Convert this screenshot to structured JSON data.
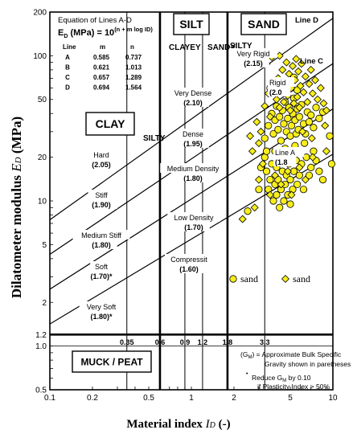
{
  "chart_data": {
    "type": "scatter",
    "xlabel": "Material index",
    "xlabel_symbol": "I",
    "xlabel_sub": "D",
    "xlabel_unit": "(-)",
    "ylabel": "Dilatometer modulus",
    "ylabel_symbol": "E",
    "ylabel_sub": "D",
    "ylabel_unit": "(MPa)",
    "x_scale": "log",
    "y_scale": "log",
    "xlim": [
      0.1,
      10
    ],
    "ylim": [
      0.5,
      200
    ],
    "x_ticks": [
      {
        "v": 0.1,
        "label": "0.1"
      },
      {
        "v": 0.2,
        "label": "0.2"
      },
      {
        "v": 0.5,
        "label": "0.5"
      },
      {
        "v": 1,
        "label": "1"
      },
      {
        "v": 2,
        "label": "2"
      },
      {
        "v": 5,
        "label": "5"
      },
      {
        "v": 10,
        "label": "10"
      }
    ],
    "y_ticks": [
      {
        "v": 0.5,
        "label": "0.5"
      },
      {
        "v": 1,
        "label": "1.0"
      },
      {
        "v": 1.2,
        "label": "1.2"
      },
      {
        "v": 2,
        "label": "2"
      },
      {
        "v": 5,
        "label": "5"
      },
      {
        "v": 10,
        "label": "10"
      },
      {
        "v": 20,
        "label": "20"
      },
      {
        "v": 50,
        "label": "50"
      },
      {
        "v": 100,
        "label": "100"
      },
      {
        "v": 200,
        "label": "200"
      }
    ],
    "id_boundaries": [
      {
        "v": 0.35,
        "label": "0.35",
        "weight": "thin"
      },
      {
        "v": 0.6,
        "label": "0.6",
        "weight": "thick"
      },
      {
        "v": 0.9,
        "label": "0.9",
        "weight": "thin"
      },
      {
        "v": 1.2,
        "label": "1.2",
        "weight": "thin"
      },
      {
        "v": 1.8,
        "label": "1.8",
        "weight": "thick"
      },
      {
        "v": 3.3,
        "label": "3.3",
        "weight": "thin"
      }
    ],
    "muck_line_y": 1.2,
    "equation": {
      "title": "Equation of Lines A-D",
      "formula_lhs": "E",
      "formula_sub": "D",
      "formula_mid": " (MPa) = 10",
      "formula_exp": "(n + m log ID)",
      "headers": [
        "Line",
        "m",
        "n"
      ],
      "rows": [
        {
          "line": "A",
          "m": "0.585",
          "n": "0.737"
        },
        {
          "line": "B",
          "m": "0.621",
          "n": "1.013"
        },
        {
          "line": "C",
          "m": "0.657",
          "n": "1.289"
        },
        {
          "line": "D",
          "m": "0.694",
          "n": "1.564"
        }
      ]
    },
    "line_labels": [
      "Line D",
      "Line C",
      "Line A"
    ],
    "soil_labels": {
      "clay": "CLAY",
      "silt": "SILT",
      "sand": "SAND",
      "clayey": "CLAYEY",
      "sandy": "SANDY",
      "silty_left": "SILTY",
      "silty_right": "SILTY",
      "muck": "MUCK / PEAT"
    },
    "zone_labels": [
      {
        "name": "Hard",
        "gm": "(2.05)"
      },
      {
        "name": "Stiff",
        "gm": "(1.90)"
      },
      {
        "name": "Medium Stiff",
        "gm": "(1.80)"
      },
      {
        "name": "Soft",
        "gm": "(1.70)*"
      },
      {
        "name": "Very Soft",
        "gm": "(1.80)*"
      },
      {
        "name": "Very Dense",
        "gm": "(2.10)"
      },
      {
        "name": "Dense",
        "gm": "(1.95)"
      },
      {
        "name": "Medium Density",
        "gm": "(1.80)"
      },
      {
        "name": "Low Density",
        "gm": "(1.70)"
      },
      {
        "name": "Compressit",
        "gm": "(1.60)"
      },
      {
        "name": "Very Rigid",
        "gm": "(2.15)"
      },
      {
        "name": "Rigid",
        "gm": "(2.0"
      },
      {
        "name": "Line A",
        "gm": "(1.8"
      }
    ],
    "notes": {
      "gm_line1": "= Approximate Bulk Specific",
      "gm_symbol": "(G",
      "gm_sub": "M",
      "gm_close": ")",
      "gm_line2": "Gravity shown in paretheses",
      "reduce_line1": "Reduce G",
      "reduce_sub": "M",
      "reduce_tail": " by 0.10",
      "reduce_line2": "if Plasticity Index > 50%"
    },
    "legend": [
      {
        "name": "sand",
        "marker": "circle"
      },
      {
        "name": "sand",
        "marker": "diamond"
      }
    ],
    "marker_color": "#f7ee1a",
    "marker_edge": "#000000",
    "series": [
      {
        "name": "sand",
        "marker": "circle",
        "points": [
          [
            2.5,
            8.5
          ],
          [
            3.0,
            12
          ],
          [
            3.1,
            17
          ],
          [
            3.3,
            20
          ],
          [
            3.4,
            16
          ],
          [
            3.5,
            12
          ],
          [
            3.6,
            14
          ],
          [
            3.7,
            18
          ],
          [
            3.8,
            10
          ],
          [
            3.9,
            13
          ],
          [
            4.0,
            17
          ],
          [
            4.0,
            11
          ],
          [
            4.1,
            14
          ],
          [
            4.2,
            9
          ],
          [
            4.3,
            12
          ],
          [
            4.4,
            16
          ],
          [
            4.5,
            19
          ],
          [
            4.5,
            10
          ],
          [
            4.6,
            13
          ],
          [
            4.7,
            15
          ],
          [
            4.8,
            11
          ],
          [
            4.9,
            18
          ],
          [
            5.0,
            14
          ],
          [
            5.0,
            9.5
          ],
          [
            5.2,
            12
          ],
          [
            5.3,
            16
          ],
          [
            5.5,
            19
          ],
          [
            5.6,
            13
          ],
          [
            5.8,
            15
          ],
          [
            6.0,
            18
          ],
          [
            6.2,
            12
          ],
          [
            6.5,
            20
          ],
          [
            6.8,
            15
          ],
          [
            7.0,
            17
          ],
          [
            7.3,
            22
          ],
          [
            7.6,
            19
          ],
          [
            8.0,
            16
          ],
          [
            8.5,
            14
          ],
          [
            3.3,
            27
          ],
          [
            3.5,
            33
          ],
          [
            3.7,
            40
          ],
          [
            3.8,
            29
          ],
          [
            3.9,
            36
          ],
          [
            4.0,
            45
          ],
          [
            4.1,
            31
          ],
          [
            4.2,
            38
          ],
          [
            4.3,
            26
          ],
          [
            4.4,
            42
          ],
          [
            4.5,
            34
          ],
          [
            4.6,
            48
          ],
          [
            4.7,
            30
          ],
          [
            4.8,
            37
          ],
          [
            4.9,
            44
          ],
          [
            5.0,
            28
          ],
          [
            5.1,
            33
          ],
          [
            5.2,
            40
          ],
          [
            5.3,
            51
          ],
          [
            5.4,
            36
          ],
          [
            5.5,
            29
          ],
          [
            5.6,
            43
          ],
          [
            5.7,
            31
          ],
          [
            5.8,
            38
          ],
          [
            6.0,
            46
          ],
          [
            6.2,
            34
          ],
          [
            6.4,
            29
          ],
          [
            6.6,
            41
          ],
          [
            6.8,
            35
          ],
          [
            7.0,
            39
          ],
          [
            7.3,
            32
          ],
          [
            7.6,
            44
          ],
          [
            8.0,
            37
          ],
          [
            8.5,
            41
          ],
          [
            9.5,
            28
          ],
          [
            9.8,
            18
          ],
          [
            4.1,
            58
          ],
          [
            4.4,
            65
          ],
          [
            4.7,
            55
          ],
          [
            5.0,
            62
          ],
          [
            5.3,
            71
          ],
          [
            5.6,
            58
          ],
          [
            3.6,
            60
          ],
          [
            3.9,
            22
          ],
          [
            4.6,
            23
          ],
          [
            5.4,
            24
          ],
          [
            6.3,
            25
          ],
          [
            3.4,
            22
          ]
        ]
      },
      {
        "name": "sand",
        "marker": "diamond",
        "points": [
          [
            2.3,
            7.5
          ],
          [
            2.8,
            9
          ],
          [
            3.0,
            14
          ],
          [
            3.2,
            18
          ],
          [
            3.6,
            11
          ],
          [
            3.9,
            15
          ],
          [
            4.3,
            13
          ],
          [
            4.8,
            16
          ],
          [
            5.1,
            11
          ],
          [
            5.8,
            17
          ],
          [
            6.4,
            14
          ],
          [
            7.2,
            20
          ],
          [
            9.0,
            22
          ],
          [
            2.9,
            35
          ],
          [
            3.1,
            30
          ],
          [
            3.3,
            45
          ],
          [
            3.5,
            55
          ],
          [
            3.6,
            38
          ],
          [
            3.8,
            62
          ],
          [
            4.0,
            50
          ],
          [
            4.1,
            70
          ],
          [
            4.2,
            44
          ],
          [
            4.3,
            57
          ],
          [
            4.4,
            80
          ],
          [
            4.5,
            48
          ],
          [
            4.6,
            66
          ],
          [
            4.7,
            90
          ],
          [
            4.8,
            53
          ],
          [
            4.9,
            75
          ],
          [
            5.0,
            42
          ],
          [
            5.1,
            60
          ],
          [
            5.2,
            85
          ],
          [
            5.3,
            47
          ],
          [
            5.4,
            68
          ],
          [
            5.5,
            95
          ],
          [
            5.6,
            52
          ],
          [
            5.7,
            78
          ],
          [
            5.8,
            44
          ],
          [
            5.9,
            62
          ],
          [
            6.0,
            88
          ],
          [
            6.2,
            56
          ],
          [
            6.4,
            72
          ],
          [
            6.6,
            48
          ],
          [
            6.8,
            64
          ],
          [
            7.0,
            80
          ],
          [
            7.2,
            55
          ],
          [
            7.5,
            68
          ],
          [
            7.8,
            50
          ],
          [
            8.2,
            60
          ],
          [
            8.6,
            47
          ],
          [
            9.0,
            42
          ],
          [
            3.4,
            88
          ],
          [
            3.7,
            98
          ],
          [
            4.2,
            100
          ],
          [
            3.0,
            25
          ],
          [
            2.7,
            22
          ],
          [
            2.6,
            28
          ],
          [
            6.1,
            30
          ],
          [
            7.1,
            27
          ],
          [
            8.8,
            33
          ]
        ]
      }
    ]
  }
}
